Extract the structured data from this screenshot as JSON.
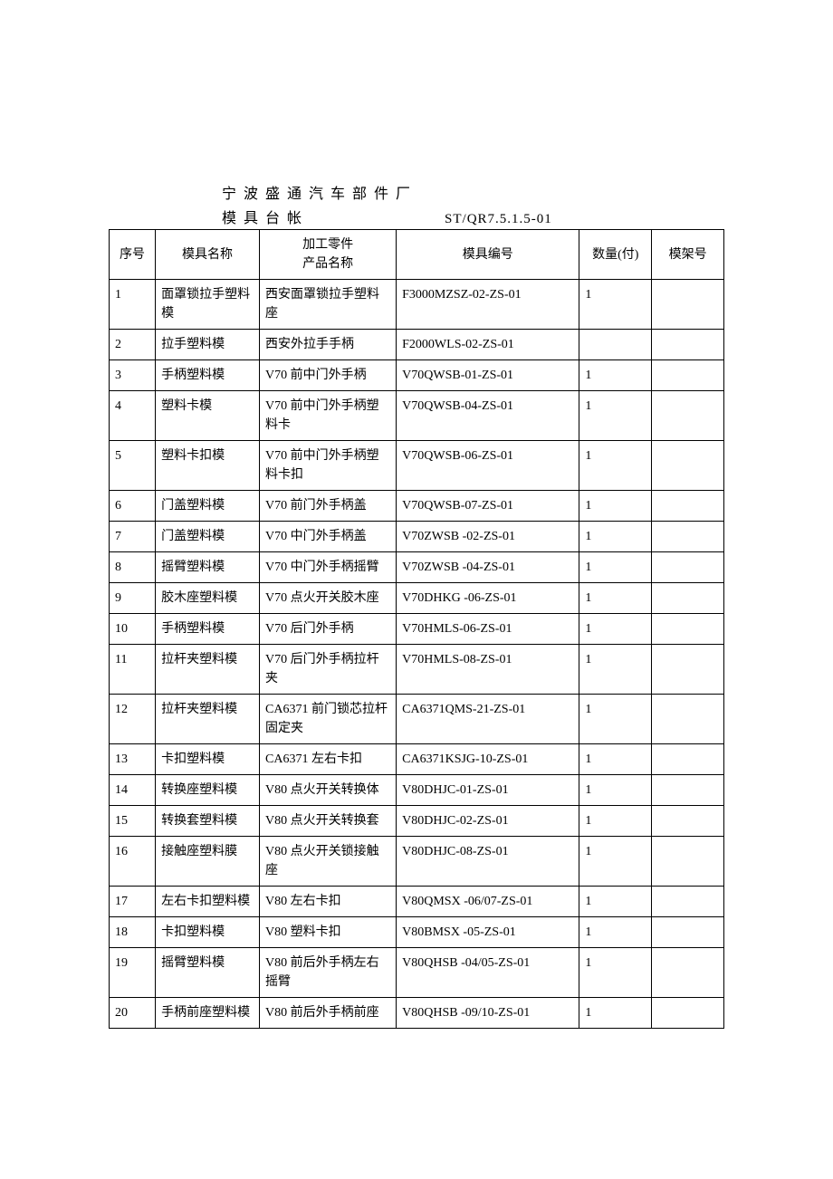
{
  "header": {
    "title_main": "宁波盛通汽车部件厂",
    "title_sub": "模具台帐",
    "doc_code": "ST/QR7.5.1.5-01"
  },
  "table": {
    "columns": {
      "seq": "序号",
      "name": "模具名称",
      "part_line1": "加工零件",
      "part_line2": "产品名称",
      "code": "模具编号",
      "qty": "数量(付)",
      "rack": "模架号"
    },
    "rows": [
      {
        "seq": "1",
        "name": "面罩锁拉手塑料模",
        "part": "西安面罩锁拉手塑料座",
        "code": "F3000MZSZ-02-ZS-01",
        "qty": "1",
        "rack": ""
      },
      {
        "seq": "2",
        "name": "拉手塑料模",
        "part": "西安外拉手手柄",
        "code": "F2000WLS-02-ZS-01",
        "qty": "",
        "rack": ""
      },
      {
        "seq": "3",
        "name": "手柄塑料模",
        "part": "V70 前中门外手柄",
        "code": "V70QWSB-01-ZS-01",
        "qty": "1",
        "rack": ""
      },
      {
        "seq": "4",
        "name": "塑料卡模",
        "part": "V70 前中门外手柄塑料卡",
        "code": "V70QWSB-04-ZS-01",
        "qty": "1",
        "rack": ""
      },
      {
        "seq": "5",
        "name": "塑料卡扣模",
        "part": "V70 前中门外手柄塑料卡扣",
        "code": "V70QWSB-06-ZS-01",
        "qty": "1",
        "rack": ""
      },
      {
        "seq": "6",
        "name": "门盖塑料模",
        "part": "V70 前门外手柄盖",
        "code": "V70QWSB-07-ZS-01",
        "qty": "1",
        "rack": ""
      },
      {
        "seq": "7",
        "name": "门盖塑料模",
        "part": "V70 中门外手柄盖",
        "code": "V70ZWSB -02-ZS-01",
        "qty": "1",
        "rack": ""
      },
      {
        "seq": "8",
        "name": "摇臂塑料模",
        "part": "V70 中门外手柄摇臂",
        "code": "V70ZWSB -04-ZS-01",
        "qty": "1",
        "rack": ""
      },
      {
        "seq": "9",
        "name": "胶木座塑料模",
        "part": "V70 点火开关胶木座",
        "code": "V70DHKG -06-ZS-01",
        "qty": "1",
        "rack": ""
      },
      {
        "seq": "10",
        "name": "手柄塑料模",
        "part": "V70 后门外手柄",
        "code": "V70HMLS-06-ZS-01",
        "qty": "1",
        "rack": ""
      },
      {
        "seq": "11",
        "name": "拉杆夹塑料模",
        "part": "V70 后门外手柄拉杆夹",
        "code": "V70HMLS-08-ZS-01",
        "qty": "1",
        "rack": ""
      },
      {
        "seq": "12",
        "name": "拉杆夹塑料模",
        "part": "CA6371 前门锁芯拉杆固定夹",
        "code": "CA6371QMS-21-ZS-01",
        "qty": "1",
        "rack": ""
      },
      {
        "seq": "13",
        "name": "卡扣塑料模",
        "part": "CA6371 左右卡扣",
        "code": "CA6371KSJG-10-ZS-01",
        "qty": "1",
        "rack": ""
      },
      {
        "seq": "14",
        "name": "转换座塑料模",
        "part": "V80 点火开关转换体",
        "code": "V80DHJC-01-ZS-01",
        "qty": "1",
        "rack": ""
      },
      {
        "seq": "15",
        "name": "转换套塑料模",
        "part": "V80 点火开关转换套",
        "code": "V80DHJC-02-ZS-01",
        "qty": "1",
        "rack": ""
      },
      {
        "seq": "16",
        "name": "接触座塑料膜",
        "part": "V80 点火开关锁接触座",
        "code": "V80DHJC-08-ZS-01",
        "qty": "1",
        "rack": ""
      },
      {
        "seq": "17",
        "name": "左右卡扣塑料模",
        "part": "V80 左右卡扣",
        "code": "V80QMSX -06/07-ZS-01",
        "qty": "1",
        "rack": ""
      },
      {
        "seq": "18",
        "name": "卡扣塑料模",
        "part": "V80 塑料卡扣",
        "code": "V80BMSX -05-ZS-01",
        "qty": "1",
        "rack": ""
      },
      {
        "seq": "19",
        "name": "摇臂塑料模",
        "part": "V80 前后外手柄左右摇臂",
        "code": "V80QHSB -04/05-ZS-01",
        "qty": "1",
        "rack": ""
      },
      {
        "seq": "20",
        "name": "手柄前座塑料模",
        "part": "V80 前后外手柄前座",
        "code": "V80QHSB -09/10-ZS-01",
        "qty": "1",
        "rack": ""
      }
    ]
  }
}
